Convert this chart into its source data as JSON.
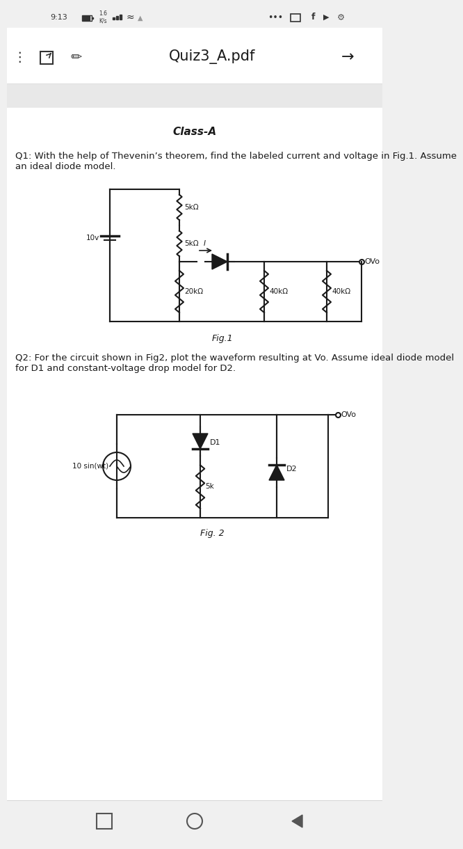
{
  "bg_color": "#f0f0f0",
  "page_bg": "#ffffff",
  "status_bar_text": "9:13",
  "title_bar_text": "Quiz3_A.pdf",
  "class_label": "Class-A",
  "q1_text": "Q1: With the help of Thevenin’s theorem, find the labeled current and voltage in Fig.1. Assume\nan ideal diode model.",
  "fig1_label": "Fig.1",
  "q2_text": "Q2: For the circuit shown in Fig2, plot the waveform resulting at Vo. Assume ideal diode model\nfor D1 and constant-voltage drop model for D2.",
  "fig2_label": "Fig. 2",
  "text_color": "#1a1a1a",
  "line_color": "#1a1a1a",
  "font_size_body": 9.5,
  "font_size_title": 13,
  "font_size_class": 11
}
